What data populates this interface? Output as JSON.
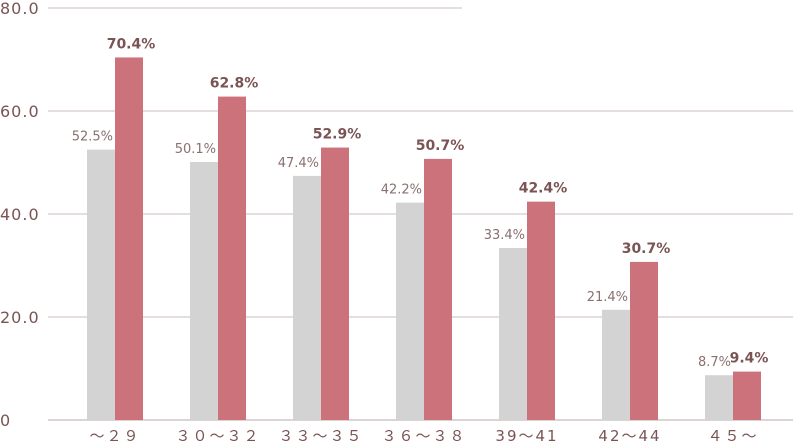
{
  "chart_data": {
    "type": "bar",
    "categories": [
      "～２９",
      "３０～３２",
      "３３～３５",
      "３６～３８",
      "39～41",
      "42～44",
      "４５～"
    ],
    "series": [
      {
        "values": [
          52.5,
          50.1,
          47.4,
          42.2,
          33.4,
          21.4,
          8.7
        ],
        "labels": [
          "52.5%",
          "50.1%",
          "47.4%",
          "42.2%",
          "33.4%",
          "21.4%",
          "8.7%"
        ],
        "color": "#d3d3d3"
      },
      {
        "values": [
          70.4,
          62.8,
          52.9,
          50.7,
          42.4,
          30.7,
          9.4
        ],
        "labels": [
          "70.4%",
          "62.8%",
          "52.9%",
          "50.7%",
          "42.4%",
          "30.7%",
          "9.4%"
        ],
        "color": "#cc727a"
      }
    ],
    "yticks": [
      "0",
      "20.0",
      "40.0",
      "60.0",
      "80.0"
    ],
    "ytick_values": [
      0,
      20,
      40,
      60,
      80
    ],
    "ylim": [
      0,
      80
    ],
    "grid": true,
    "title": "",
    "xlabel": "",
    "ylabel": ""
  }
}
